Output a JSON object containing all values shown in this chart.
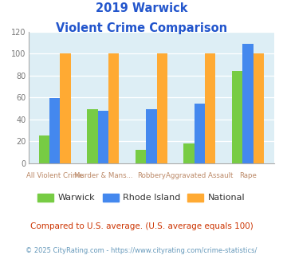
{
  "title_line1": "2019 Warwick",
  "title_line2": "Violent Crime Comparison",
  "categories": [
    "All Violent Crime",
    "Murder & Mans...",
    "Robbery",
    "Aggravated Assault",
    "Rape"
  ],
  "warwick": [
    25,
    49,
    12,
    18,
    84
  ],
  "rhode_island": [
    59,
    48,
    49,
    54,
    109
  ],
  "national": [
    100,
    100,
    100,
    100,
    100
  ],
  "bar_colors": {
    "warwick": "#77cc44",
    "rhode_island": "#4488ee",
    "national": "#ffaa33"
  },
  "ylim": [
    0,
    120
  ],
  "yticks": [
    0,
    20,
    40,
    60,
    80,
    100,
    120
  ],
  "title_color": "#2255cc",
  "axis_label_color_top": "#bb8866",
  "axis_label_color_bot": "#bb8866",
  "background_color": "#ddeef5",
  "legend_labels": [
    "Warwick",
    "Rhode Island",
    "National"
  ],
  "footnote1": "Compared to U.S. average. (U.S. average equals 100)",
  "footnote2": "© 2025 CityRating.com - https://www.cityrating.com/crime-statistics/",
  "footnote1_color": "#cc3300",
  "footnote2_color": "#6699bb",
  "top_labels": [
    "",
    "Murder & Mans...",
    "",
    "Aggravated Assault",
    ""
  ],
  "bottom_labels": [
    "All Violent Crime",
    "",
    "Robbery",
    "",
    "Rape"
  ]
}
